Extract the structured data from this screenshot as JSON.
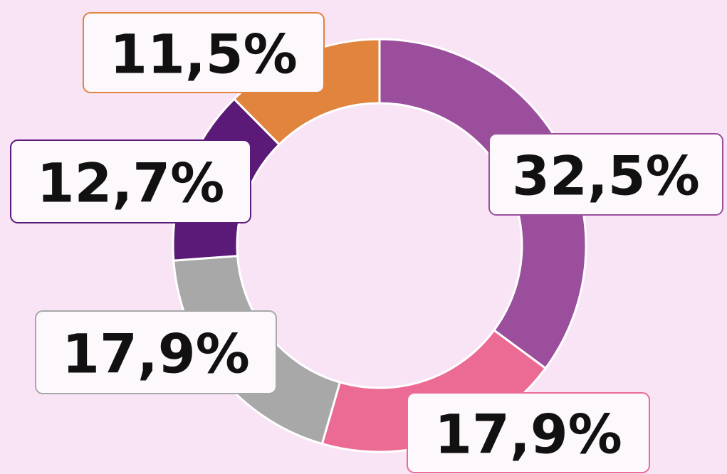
{
  "chart_data": {
    "type": "donut",
    "values": [
      32.5,
      17.9,
      17.9,
      12.7,
      11.5
    ],
    "value_labels": [
      "32,5%",
      "17,9%",
      "17,9%",
      "12,7%",
      "11,5%"
    ],
    "colors": [
      "#9a4e9c",
      "#ec6b94",
      "#a8a8a8",
      "#5b1a78",
      "#e0843e"
    ]
  }
}
